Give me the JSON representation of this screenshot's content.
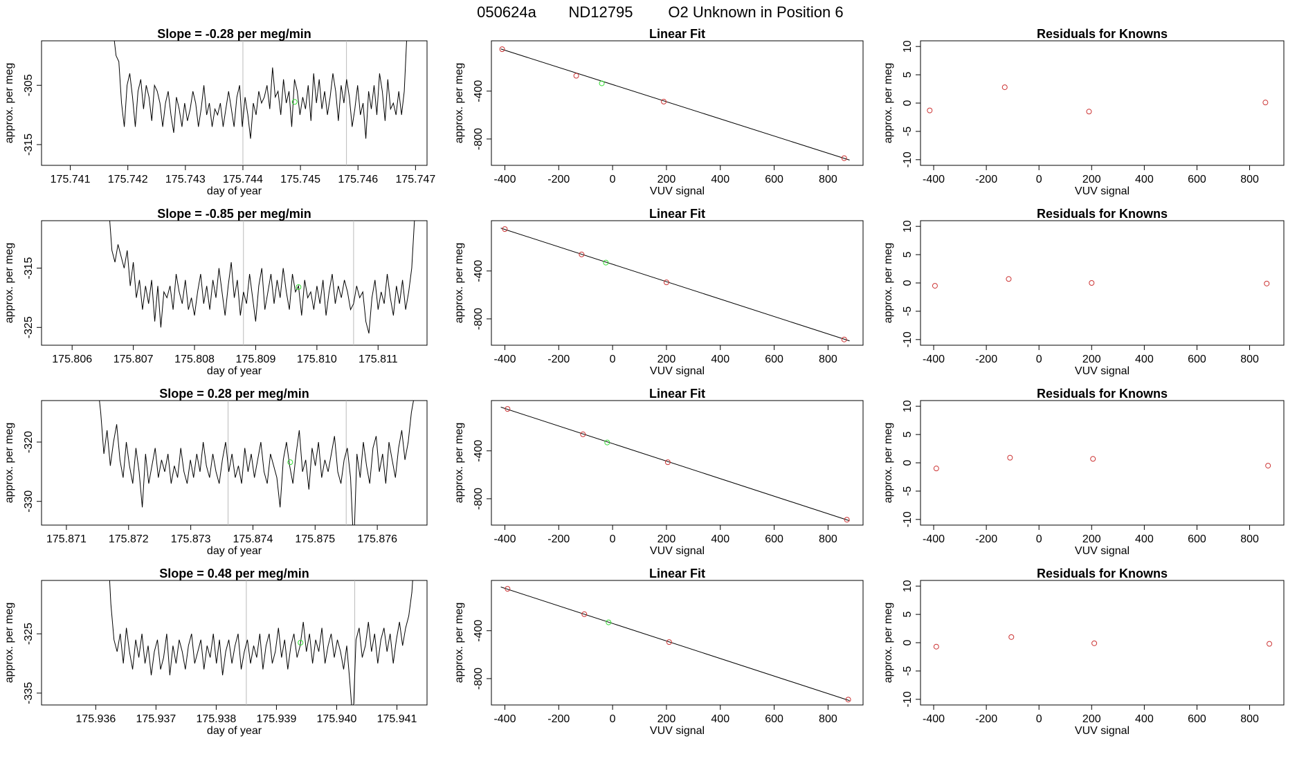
{
  "page": {
    "title_parts": [
      "050624a",
      "ND12795",
      "O2 Unknown in Position  6"
    ]
  },
  "colors": {
    "trace": "#000000",
    "known_point": "#cc3333",
    "unknown_point": "#33dd33",
    "divider": "#bbbbbb",
    "axes": "#000000"
  },
  "chart_data": [
    {
      "type": "line",
      "row": 1,
      "panel": "trace",
      "title": "Slope =  -0.28  per meg/min",
      "xlabel": "day of year",
      "ylabel": "approx. per meg",
      "xlim": [
        175.7405,
        175.7472
      ],
      "ylim": [
        -318.5,
        -297.5
      ],
      "xticks": [
        175.741,
        175.742,
        175.743,
        175.744,
        175.745,
        175.746,
        175.747
      ],
      "xtick_labels": [
        "175.741",
        "175.742",
        "175.743",
        "175.744",
        "175.745",
        "175.746",
        "175.747"
      ],
      "yticks": [
        -305,
        -315
      ],
      "ytick_labels": [
        "-305",
        "-315"
      ],
      "trace_x_range": [
        175.7417,
        175.7469
      ],
      "trace_y_values": [
        -284,
        -296,
        -300,
        -301,
        -308,
        -312,
        -305,
        -303,
        -307,
        -312,
        -306,
        -304,
        -309,
        -305,
        -307,
        -311,
        -305,
        -306,
        -308,
        -312,
        -308,
        -306,
        -310,
        -313,
        -307,
        -309,
        -312,
        -308,
        -311,
        -309,
        -306,
        -308,
        -312,
        -309,
        -305,
        -310,
        -308,
        -312,
        -309,
        -310,
        -308,
        -312,
        -309,
        -306,
        -309,
        -312,
        -307,
        -305,
        -312,
        -307,
        -310,
        -314,
        -308,
        -310,
        -306,
        -308,
        -307,
        -305,
        -309,
        -302,
        -307,
        -306,
        -310,
        -304,
        -308,
        -306,
        -312,
        -304,
        -306,
        -310,
        -307,
        -309,
        -305,
        -311,
        -303,
        -308,
        -304,
        -309,
        -306,
        -310,
        -307,
        -303,
        -306,
        -311,
        -305,
        -308,
        -304,
        -307,
        -312,
        -309,
        -305,
        -310,
        -308,
        -314,
        -306,
        -309,
        -305,
        -310,
        -303,
        -306,
        -311,
        -304,
        -309,
        -308,
        -310,
        -306,
        -310,
        -306,
        -296,
        -285
      ],
      "unknown_point": [
        175.7449,
        -307.8
      ],
      "vlines": [
        175.744,
        175.7458
      ]
    },
    {
      "type": "scatter",
      "row": 1,
      "panel": "fit",
      "title": "Linear Fit",
      "xlabel": "VUV signal",
      "ylabel": "approx. per meg",
      "xlim": [
        -450,
        930
      ],
      "ylim": [
        -1020,
        20
      ],
      "xticks": [
        -400,
        -200,
        0,
        200,
        400,
        600,
        800
      ],
      "xtick_labels": [
        "-400",
        "-200",
        "0",
        "200",
        "400",
        "600",
        "800"
      ],
      "yticks": [
        -400,
        -800
      ],
      "ytick_labels": [
        "-400",
        "-800"
      ],
      "knowns_x": [
        -410,
        -135,
        190,
        860
      ],
      "knowns_y": [
        -50,
        -272,
        -488,
        -960
      ],
      "unknown": [
        -40,
        -335
      ],
      "fit_line": [
        [
          -415,
          -48
        ],
        [
          880,
          -976
        ]
      ]
    },
    {
      "type": "scatter",
      "row": 1,
      "panel": "residuals",
      "title": "Residuals for Knowns",
      "xlabel": "VUV signal",
      "ylabel": "approx. per meg",
      "xlim": [
        -450,
        930
      ],
      "ylim": [
        -11,
        11
      ],
      "xticks": [
        -400,
        -200,
        0,
        200,
        400,
        600,
        800
      ],
      "xtick_labels": [
        "-400",
        "-200",
        "0",
        "200",
        "400",
        "600",
        "800"
      ],
      "yticks": [
        10,
        5,
        0,
        -5,
        -10
      ],
      "ytick_labels": [
        "10",
        "5",
        "0",
        "-5",
        "-10"
      ],
      "x": [
        -415,
        -130,
        190,
        860
      ],
      "y": [
        -1.3,
        2.8,
        -1.5,
        0.1
      ]
    },
    {
      "type": "line",
      "row": 2,
      "panel": "trace",
      "title": "Slope =  -0.85  per meg/min",
      "xlabel": "day of year",
      "ylabel": "approx. per meg",
      "xlim": [
        175.8055,
        175.8118
      ],
      "ylim": [
        -328,
        -307
      ],
      "xticks": [
        175.806,
        175.807,
        175.808,
        175.809,
        175.81,
        175.811
      ],
      "xtick_labels": [
        "175.806",
        "175.807",
        "175.808",
        "175.809",
        "175.810",
        "175.811"
      ],
      "yticks": [
        -315,
        -325
      ],
      "ytick_labels": [
        "-315",
        "-325"
      ],
      "trace_x_range": [
        175.8066,
        175.8116
      ],
      "trace_y_values": [
        -305,
        -312,
        -314,
        -311,
        -313,
        -315,
        -312,
        -318,
        -314,
        -320,
        -317,
        -322,
        -318,
        -321,
        -317,
        -324,
        -318,
        -325,
        -319,
        -320,
        -318,
        -322,
        -316,
        -319,
        -321,
        -317,
        -322,
        -320,
        -323,
        -319,
        -316,
        -321,
        -318,
        -322,
        -317,
        -320,
        -315,
        -319,
        -323,
        -318,
        -314,
        -320,
        -317,
        -323,
        -319,
        -321,
        -316,
        -320,
        -324,
        -318,
        -315,
        -322,
        -319,
        -316,
        -321,
        -317,
        -320,
        -315,
        -319,
        -322,
        -316,
        -319,
        -318,
        -323,
        -317,
        -320,
        -319,
        -322,
        -318,
        -321,
        -317,
        -323,
        -319,
        -316,
        -321,
        -318,
        -320,
        -317,
        -319,
        -322,
        -321,
        -318,
        -320,
        -319,
        -324,
        -326,
        -320,
        -317,
        -322,
        -319,
        -321,
        -316,
        -320,
        -323,
        -318,
        -321,
        -317,
        -322,
        -319,
        -315,
        -306
      ],
      "unknown_point": [
        175.8097,
        -318.2
      ],
      "vlines": [
        175.8088,
        175.8106
      ]
    },
    {
      "type": "scatter",
      "row": 2,
      "panel": "fit",
      "title": "Linear Fit",
      "xlabel": "VUV signal",
      "ylabel": "approx. per meg",
      "xlim": [
        -450,
        930
      ],
      "ylim": [
        -1020,
        20
      ],
      "xticks": [
        -400,
        -200,
        0,
        200,
        400,
        600,
        800
      ],
      "xtick_labels": [
        "-400",
        "-200",
        "0",
        "200",
        "400",
        "600",
        "800"
      ],
      "yticks": [
        -400,
        -800
      ],
      "ytick_labels": [
        "-400",
        "-800"
      ],
      "knowns_x": [
        -400,
        -115,
        200,
        860
      ],
      "knowns_y": [
        -50,
        -262,
        -495,
        -972
      ],
      "unknown": [
        -25,
        -330
      ],
      "fit_line": [
        [
          -415,
          -42
        ],
        [
          880,
          -984
        ]
      ]
    },
    {
      "type": "scatter",
      "row": 2,
      "panel": "residuals",
      "title": "Residuals for Knowns",
      "xlabel": "VUV signal",
      "ylabel": "approx. per meg",
      "xlim": [
        -450,
        930
      ],
      "ylim": [
        -11,
        11
      ],
      "xticks": [
        -400,
        -200,
        0,
        200,
        400,
        600,
        800
      ],
      "xtick_labels": [
        "-400",
        "-200",
        "0",
        "200",
        "400",
        "600",
        "800"
      ],
      "yticks": [
        10,
        5,
        0,
        -5,
        -10
      ],
      "ytick_labels": [
        "10",
        "5",
        "0",
        "-5",
        "-10"
      ],
      "x": [
        -395,
        -115,
        200,
        865
      ],
      "y": [
        -0.5,
        0.7,
        0.0,
        -0.1
      ]
    },
    {
      "type": "line",
      "row": 3,
      "panel": "trace",
      "title": "Slope =  0.28  per meg/min",
      "xlabel": "day of year",
      "ylabel": "approx. per meg",
      "xlim": [
        175.8706,
        175.8768
      ],
      "ylim": [
        -334,
        -313
      ],
      "xticks": [
        175.871,
        175.872,
        175.873,
        175.874,
        175.875,
        175.876
      ],
      "xtick_labels": [
        "175.871",
        "175.872",
        "175.873",
        "175.874",
        "175.875",
        "175.876"
      ],
      "yticks": [
        -320,
        -330
      ],
      "ytick_labels": [
        "-320",
        "-330"
      ],
      "trace_x_range": [
        175.8715,
        175.8766
      ],
      "trace_y_values": [
        -310,
        -315,
        -322,
        -318,
        -324,
        -320,
        -317,
        -323,
        -326,
        -320,
        -324,
        -327,
        -321,
        -325,
        -331,
        -322,
        -327,
        -324,
        -321,
        -326,
        -323,
        -325,
        -322,
        -327,
        -324,
        -326,
        -321,
        -325,
        -327,
        -323,
        -326,
        -322,
        -325,
        -320,
        -324,
        -326,
        -322,
        -325,
        -327,
        -323,
        -320,
        -325,
        -322,
        -326,
        -324,
        -327,
        -321,
        -325,
        -322,
        -326,
        -323,
        -320,
        -325,
        -327,
        -322,
        -324,
        -326,
        -331,
        -323,
        -320,
        -324,
        -327,
        -322,
        -318,
        -325,
        -323,
        -328,
        -321,
        -324,
        -320,
        -326,
        -323,
        -325,
        -322,
        -319,
        -325,
        -327,
        -323,
        -321,
        -326,
        -338,
        -322,
        -326,
        -320,
        -324,
        -327,
        -321,
        -319,
        -325,
        -322,
        -327,
        -320,
        -323,
        -326,
        -321,
        -318,
        -323,
        -320,
        -315,
        -312
      ],
      "unknown_point": [
        175.8746,
        -323.4
      ],
      "vlines": [
        175.8736,
        175.8755
      ]
    },
    {
      "type": "scatter",
      "row": 3,
      "panel": "fit",
      "title": "Linear Fit",
      "xlabel": "VUV signal",
      "ylabel": "approx. per meg",
      "xlim": [
        -450,
        930
      ],
      "ylim": [
        -1020,
        20
      ],
      "xticks": [
        -400,
        -200,
        0,
        200,
        400,
        600,
        800
      ],
      "xtick_labels": [
        "-400",
        "-200",
        "0",
        "200",
        "400",
        "600",
        "800"
      ],
      "yticks": [
        -400,
        -800
      ],
      "ytick_labels": [
        "-400",
        "-800"
      ],
      "knowns_x": [
        -390,
        -110,
        205,
        870
      ],
      "knowns_y": [
        -50,
        -262,
        -495,
        -975
      ],
      "unknown": [
        -20,
        -330
      ],
      "fit_line": [
        [
          -415,
          -35
        ],
        [
          880,
          -984
        ]
      ]
    },
    {
      "type": "scatter",
      "row": 3,
      "panel": "residuals",
      "title": "Residuals for Knowns",
      "xlabel": "VUV signal",
      "ylabel": "approx. per meg",
      "xlim": [
        -450,
        930
      ],
      "ylim": [
        -11,
        11
      ],
      "xticks": [
        -400,
        -200,
        0,
        200,
        400,
        600,
        800
      ],
      "xtick_labels": [
        "-400",
        "-200",
        "0",
        "200",
        "400",
        "600",
        "800"
      ],
      "yticks": [
        10,
        5,
        0,
        -5,
        -10
      ],
      "ytick_labels": [
        "10",
        "5",
        "0",
        "-5",
        "-10"
      ],
      "x": [
        -390,
        -110,
        205,
        870
      ],
      "y": [
        -1.0,
        0.9,
        0.7,
        -0.5
      ]
    },
    {
      "type": "line",
      "row": 4,
      "panel": "trace",
      "title": "Slope =  0.48  per meg/min",
      "xlabel": "day of year",
      "ylabel": "approx. per meg",
      "xlim": [
        175.9351,
        175.9415
      ],
      "ylim": [
        -337,
        -316
      ],
      "xticks": [
        175.936,
        175.937,
        175.938,
        175.939,
        175.94,
        175.941
      ],
      "xtick_labels": [
        "175.936",
        "175.937",
        "175.938",
        "175.939",
        "175.940",
        "175.941"
      ],
      "yticks": [
        -325,
        -335
      ],
      "ytick_labels": [
        "-325",
        "-335"
      ],
      "trace_x_range": [
        175.9362,
        175.9413
      ],
      "trace_y_values": [
        -310,
        -320,
        -326,
        -328,
        -325,
        -330,
        -324,
        -328,
        -331,
        -326,
        -329,
        -325,
        -330,
        -327,
        -332,
        -328,
        -326,
        -331,
        -329,
        -325,
        -332,
        -327,
        -330,
        -326,
        -328,
        -331,
        -327,
        -325,
        -330,
        -328,
        -326,
        -331,
        -327,
        -329,
        -325,
        -330,
        -326,
        -332,
        -328,
        -326,
        -330,
        -327,
        -325,
        -331,
        -328,
        -326,
        -330,
        -327,
        -329,
        -325,
        -331,
        -327,
        -325,
        -330,
        -328,
        -324,
        -329,
        -326,
        -331,
        -327,
        -325,
        -329,
        -327,
        -323,
        -328,
        -325,
        -330,
        -326,
        -328,
        -324,
        -330,
        -327,
        -325,
        -329,
        -326,
        -328,
        -331,
        -327,
        -333,
        -340,
        -326,
        -324,
        -329,
        -327,
        -323,
        -328,
        -325,
        -330,
        -326,
        -324,
        -328,
        -325,
        -330,
        -326,
        -323,
        -327,
        -324,
        -322,
        -318,
        -310
      ],
      "unknown_point": [
        175.9394,
        -326.5
      ],
      "vlines": [
        175.9385,
        175.9403
      ]
    },
    {
      "type": "scatter",
      "row": 4,
      "panel": "fit",
      "title": "Linear Fit",
      "xlabel": "VUV signal",
      "ylabel": "approx. per meg",
      "xlim": [
        -450,
        930
      ],
      "ylim": [
        -1020,
        20
      ],
      "xticks": [
        -400,
        -200,
        0,
        200,
        400,
        600,
        800
      ],
      "xtick_labels": [
        "-400",
        "-200",
        "0",
        "200",
        "400",
        "600",
        "800"
      ],
      "yticks": [
        -400,
        -800
      ],
      "ytick_labels": [
        "-400",
        "-800"
      ],
      "knowns_x": [
        -390,
        -105,
        210,
        875
      ],
      "knowns_y": [
        -50,
        -262,
        -495,
        -975
      ],
      "unknown": [
        -15,
        -330
      ],
      "fit_line": [
        [
          -415,
          -35
        ],
        [
          880,
          -984
        ]
      ]
    },
    {
      "type": "scatter",
      "row": 4,
      "panel": "residuals",
      "title": "Residuals for Knowns",
      "xlabel": "VUV signal",
      "ylabel": "approx. per meg",
      "xlim": [
        -450,
        930
      ],
      "ylim": [
        -11,
        11
      ],
      "xticks": [
        -400,
        -200,
        0,
        200,
        400,
        600,
        800
      ],
      "xtick_labels": [
        "-400",
        "-200",
        "0",
        "200",
        "400",
        "600",
        "800"
      ],
      "yticks": [
        10,
        5,
        0,
        -5,
        -10
      ],
      "ytick_labels": [
        "10",
        "5",
        "0",
        "-5",
        "-10"
      ],
      "x": [
        -390,
        -105,
        210,
        875
      ],
      "y": [
        -0.7,
        1.0,
        -0.1,
        -0.2
      ]
    }
  ]
}
